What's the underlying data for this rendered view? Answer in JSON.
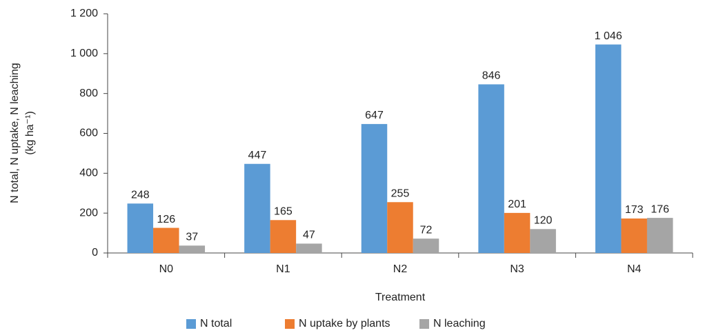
{
  "chart_data": {
    "type": "bar",
    "y_label": [
      "N total, N uptake, N leaching",
      "(kg ha⁻¹)"
    ],
    "x_label": "Treatment",
    "categories": [
      "N0",
      "N1",
      "N2",
      "N3",
      "N4"
    ],
    "series": [
      {
        "name": "N total",
        "color": "#5b9bd5",
        "values": [
          248,
          447,
          647,
          846,
          1046
        ],
        "value_labels": [
          "248",
          "447",
          "647",
          "846",
          "1 046"
        ]
      },
      {
        "name": "N uptake by plants",
        "color": "#ed7d31",
        "values": [
          126,
          165,
          255,
          201,
          173
        ]
      },
      {
        "name": "N leaching",
        "color": "#a5a5a5",
        "values": [
          37,
          47,
          72,
          120,
          176
        ]
      }
    ],
    "ylim": [
      0,
      1200
    ],
    "yticks": [
      0,
      200,
      400,
      600,
      800,
      {
        "value": 1000,
        "label": "1 000"
      },
      {
        "value": 1200,
        "label": "1 200"
      }
    ],
    "legend": "bottom"
  }
}
